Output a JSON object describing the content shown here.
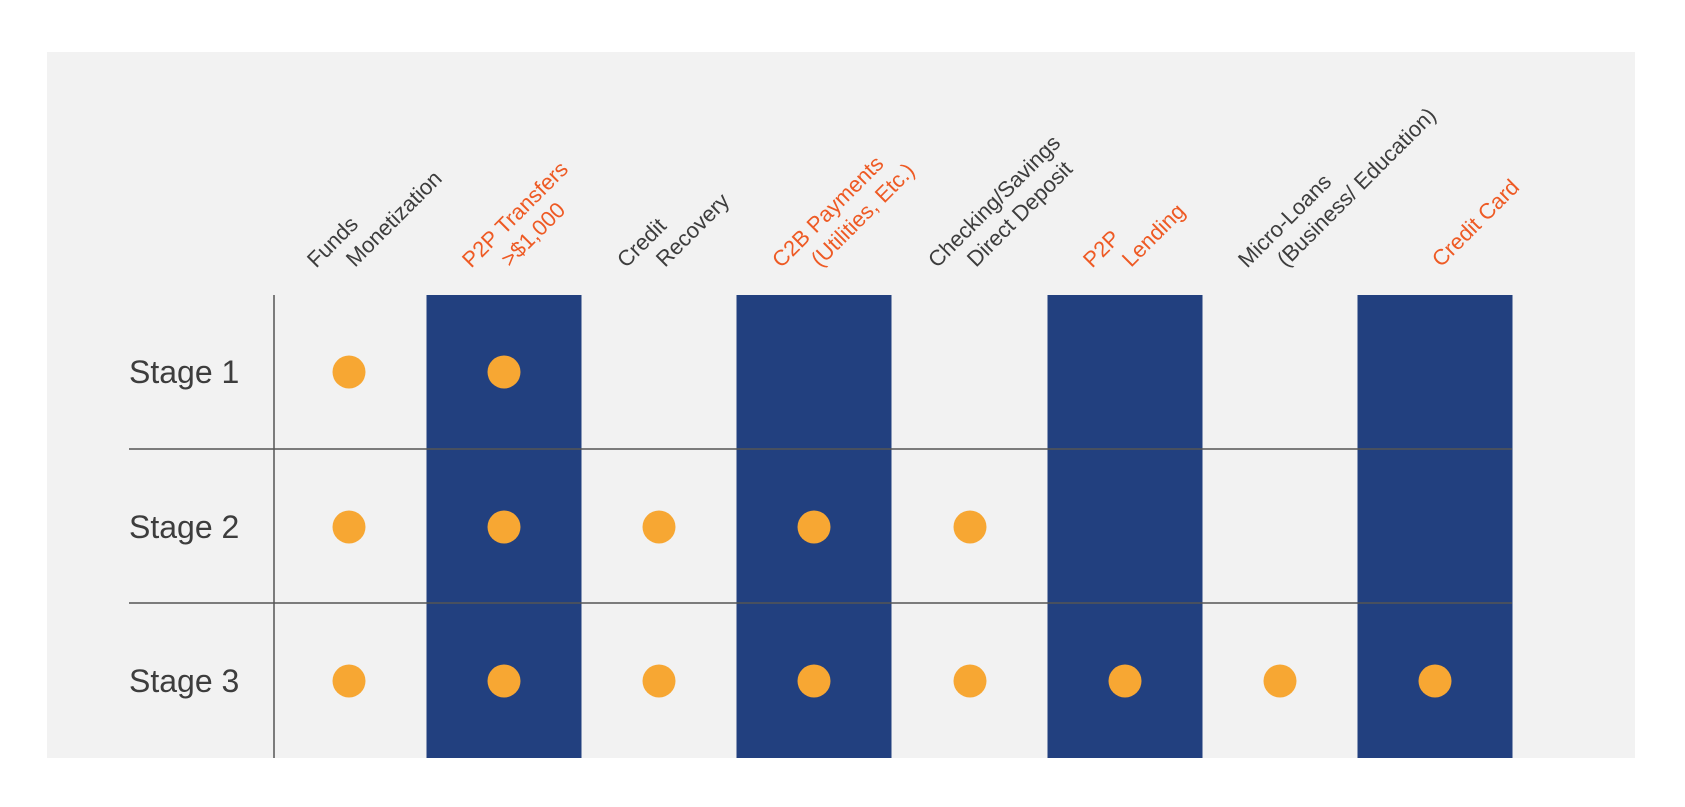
{
  "colors": {
    "panel_background": "#f2f2f2",
    "highlight_column": "#22407f",
    "dot": "#f7a733",
    "label_default": "#3d3d3d",
    "label_highlight": "#ee5a24",
    "grid_line": "#555555"
  },
  "columns": [
    {
      "lines": [
        "Funds",
        "Monetization"
      ],
      "highlight": false
    },
    {
      "lines": [
        "P2P Transfers",
        ">$1,000"
      ],
      "highlight": true
    },
    {
      "lines": [
        "Credit",
        "Recovery"
      ],
      "highlight": false
    },
    {
      "lines": [
        "C2B Payments",
        "(Utilities, Etc.)"
      ],
      "highlight": true
    },
    {
      "lines": [
        "Checking/Savings",
        "Direct Deposit"
      ],
      "highlight": false
    },
    {
      "lines": [
        "P2P",
        "Lending"
      ],
      "highlight": true
    },
    {
      "lines": [
        "Micro-Loans",
        "(Business/ Education)"
      ],
      "highlight": false
    },
    {
      "lines": [
        "Credit Card"
      ],
      "highlight": true
    }
  ],
  "rows": [
    {
      "label": "Stage 1",
      "dots": [
        1,
        1,
        0,
        0,
        0,
        0,
        0,
        0
      ]
    },
    {
      "label": "Stage 2",
      "dots": [
        1,
        1,
        1,
        1,
        1,
        0,
        0,
        0
      ]
    },
    {
      "label": "Stage 3",
      "dots": [
        1,
        1,
        1,
        1,
        1,
        1,
        1,
        1
      ]
    }
  ]
}
